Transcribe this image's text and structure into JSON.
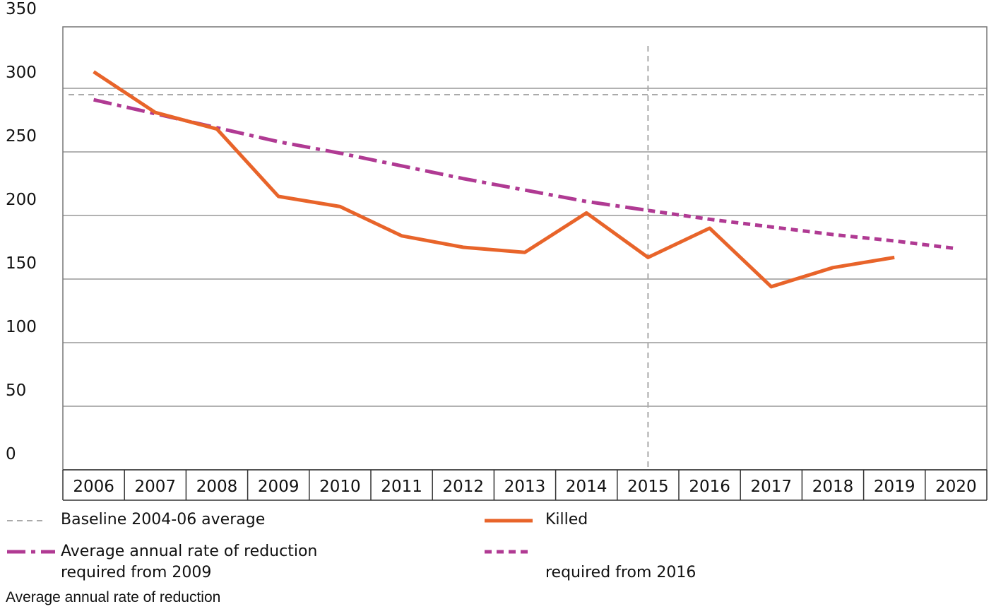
{
  "chart_data": {
    "type": "line",
    "categories": [
      "2006",
      "2007",
      "2008",
      "2009",
      "2010",
      "2011",
      "2012",
      "2013",
      "2014",
      "2015",
      "2016",
      "2017",
      "2018",
      "2019",
      "2020"
    ],
    "series": [
      {
        "name": "Killed",
        "color": "#e8642a",
        "style": "solid",
        "values": [
          313,
          281,
          268,
          215,
          207,
          184,
          175,
          171,
          202,
          167,
          190,
          144,
          159,
          167,
          null
        ]
      },
      {
        "name": "Average annual rate of reduction required from 2009",
        "color": "#b03a93",
        "style": "dashdot",
        "values": [
          291,
          280,
          269,
          258,
          249,
          239,
          229,
          220,
          211,
          204,
          null,
          null,
          null,
          null,
          null
        ]
      },
      {
        "name": "required from 2016",
        "color": "#b03a93",
        "style": "dotted",
        "values": [
          null,
          null,
          null,
          null,
          null,
          null,
          null,
          null,
          null,
          204,
          197,
          191,
          185,
          180,
          174
        ]
      }
    ],
    "baseline": 295,
    "baseline_label": "Baseline 2004-06 average",
    "vline": "2015",
    "footnote": "Average annual rate of reduction",
    "ylim": [
      0,
      350
    ],
    "yticks": [
      0,
      50,
      100,
      150,
      200,
      250,
      300,
      350
    ],
    "grid": true
  }
}
